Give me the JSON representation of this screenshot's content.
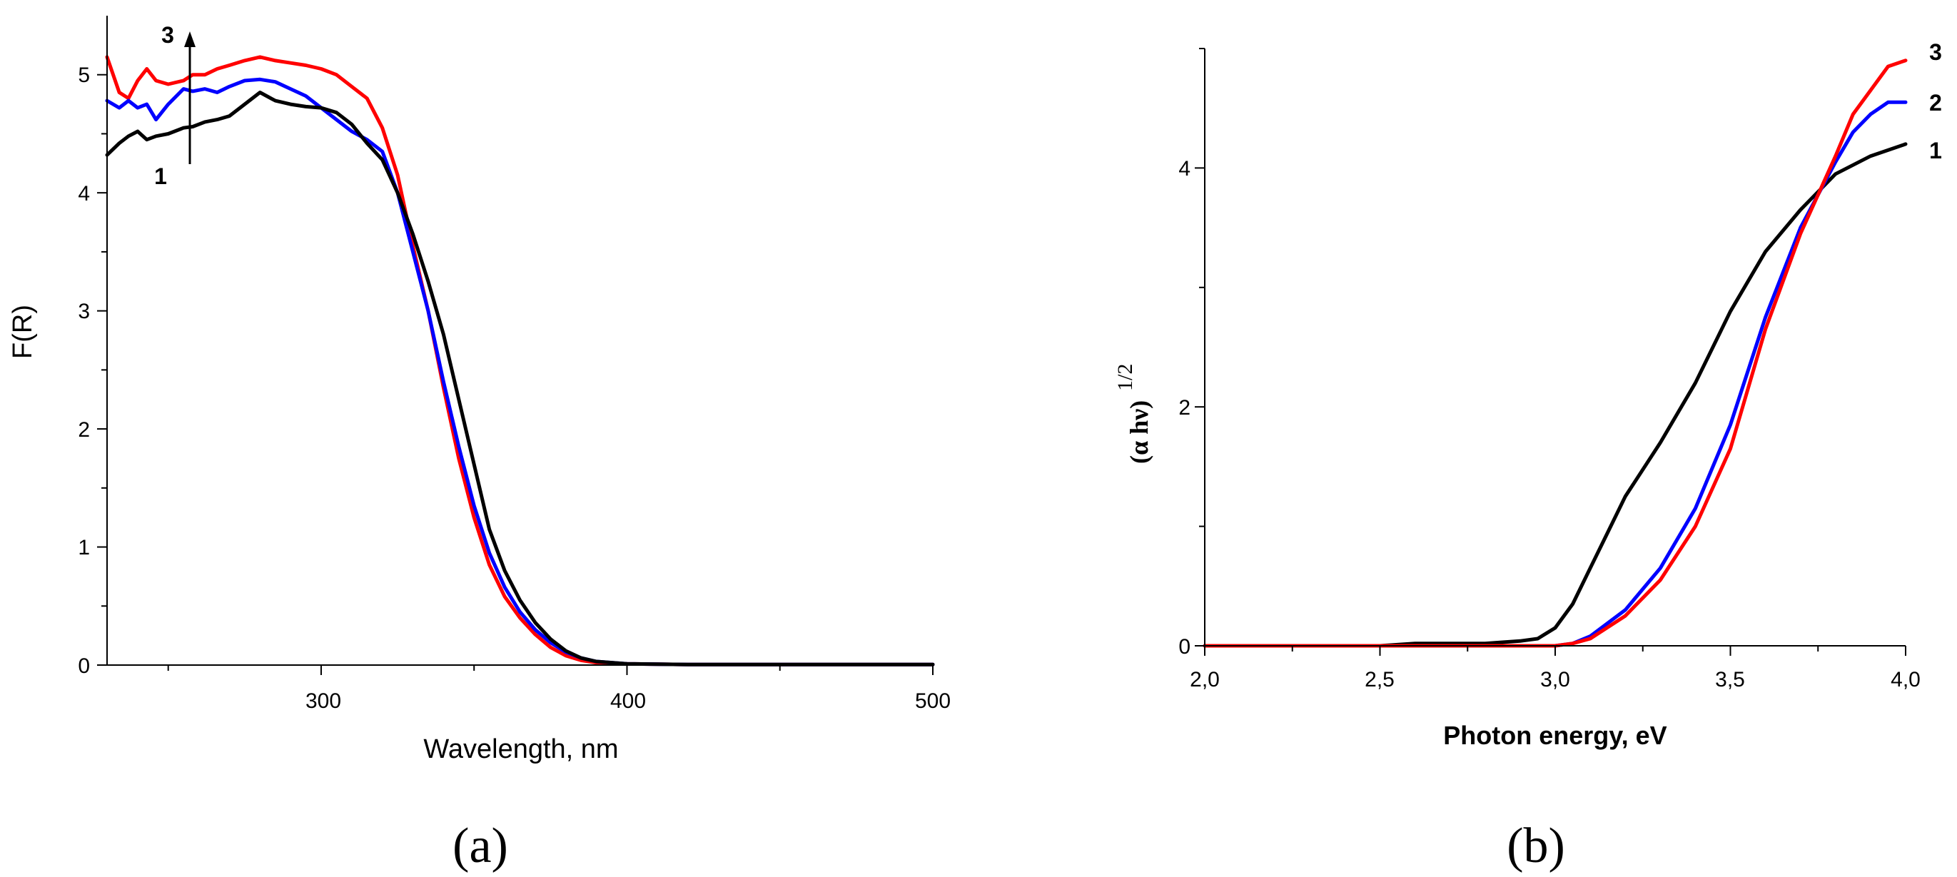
{
  "chart_data": [
    {
      "type": "line",
      "panel_label": "(a)",
      "xlabel": "Wavelength, nm",
      "ylabel": "F(R)",
      "xlim": [
        230,
        500
      ],
      "ylim": [
        0,
        5.5
      ],
      "x_ticks": [
        "300",
        "400",
        "500"
      ],
      "y_ticks": [
        "0",
        "1",
        "2",
        "3",
        "4",
        "5"
      ],
      "grid": false,
      "annotations": [
        "1",
        "3"
      ],
      "series": [
        {
          "color": "#ff0000",
          "points": [
            [
              230,
              5.15
            ],
            [
              234,
              4.85
            ],
            [
              237,
              4.8
            ],
            [
              240,
              4.95
            ],
            [
              243,
              5.05
            ],
            [
              246,
              4.95
            ],
            [
              250,
              4.92
            ],
            [
              255,
              4.95
            ],
            [
              258,
              5.0
            ],
            [
              262,
              5.0
            ],
            [
              266,
              5.05
            ],
            [
              270,
              5.08
            ],
            [
              275,
              5.12
            ],
            [
              280,
              5.15
            ],
            [
              285,
              5.12
            ],
            [
              290,
              5.1
            ],
            [
              295,
              5.08
            ],
            [
              300,
              5.05
            ],
            [
              305,
              5.0
            ],
            [
              310,
              4.9
            ],
            [
              315,
              4.8
            ],
            [
              320,
              4.55
            ],
            [
              325,
              4.15
            ],
            [
              330,
              3.55
            ],
            [
              335,
              3.0
            ],
            [
              340,
              2.35
            ],
            [
              345,
              1.75
            ],
            [
              350,
              1.25
            ],
            [
              355,
              0.85
            ],
            [
              360,
              0.58
            ],
            [
              365,
              0.4
            ],
            [
              370,
              0.26
            ],
            [
              375,
              0.15
            ],
            [
              380,
              0.08
            ],
            [
              385,
              0.04
            ],
            [
              390,
              0.02
            ],
            [
              400,
              0.01
            ],
            [
              420,
              0.005
            ],
            [
              500,
              0.005
            ]
          ]
        },
        {
          "color": "#0000ff",
          "points": [
            [
              230,
              4.78
            ],
            [
              234,
              4.72
            ],
            [
              237,
              4.78
            ],
            [
              240,
              4.72
            ],
            [
              243,
              4.75
            ],
            [
              246,
              4.62
            ],
            [
              250,
              4.75
            ],
            [
              255,
              4.88
            ],
            [
              258,
              4.86
            ],
            [
              262,
              4.88
            ],
            [
              266,
              4.85
            ],
            [
              270,
              4.9
            ],
            [
              275,
              4.95
            ],
            [
              280,
              4.96
            ],
            [
              285,
              4.94
            ],
            [
              290,
              4.88
            ],
            [
              295,
              4.82
            ],
            [
              300,
              4.72
            ],
            [
              305,
              4.62
            ],
            [
              310,
              4.52
            ],
            [
              315,
              4.45
            ],
            [
              320,
              4.35
            ],
            [
              325,
              4.0
            ],
            [
              330,
              3.5
            ],
            [
              335,
              3.0
            ],
            [
              340,
              2.4
            ],
            [
              345,
              1.85
            ],
            [
              350,
              1.35
            ],
            [
              355,
              0.95
            ],
            [
              360,
              0.66
            ],
            [
              365,
              0.45
            ],
            [
              370,
              0.3
            ],
            [
              375,
              0.19
            ],
            [
              380,
              0.11
            ],
            [
              385,
              0.06
            ],
            [
              390,
              0.03
            ],
            [
              400,
              0.01
            ],
            [
              420,
              0.005
            ],
            [
              500,
              0.005
            ]
          ]
        },
        {
          "color": "#000000",
          "points": [
            [
              230,
              4.32
            ],
            [
              234,
              4.42
            ],
            [
              237,
              4.48
            ],
            [
              240,
              4.52
            ],
            [
              243,
              4.45
            ],
            [
              246,
              4.48
            ],
            [
              250,
              4.5
            ],
            [
              255,
              4.55
            ],
            [
              258,
              4.56
            ],
            [
              262,
              4.6
            ],
            [
              266,
              4.62
            ],
            [
              270,
              4.65
            ],
            [
              275,
              4.75
            ],
            [
              280,
              4.85
            ],
            [
              285,
              4.78
            ],
            [
              290,
              4.75
            ],
            [
              295,
              4.73
            ],
            [
              300,
              4.72
            ],
            [
              305,
              4.68
            ],
            [
              310,
              4.58
            ],
            [
              315,
              4.42
            ],
            [
              320,
              4.28
            ],
            [
              325,
              4.0
            ],
            [
              330,
              3.65
            ],
            [
              335,
              3.25
            ],
            [
              340,
              2.8
            ],
            [
              345,
              2.25
            ],
            [
              350,
              1.7
            ],
            [
              355,
              1.15
            ],
            [
              360,
              0.8
            ],
            [
              365,
              0.55
            ],
            [
              370,
              0.36
            ],
            [
              375,
              0.22
            ],
            [
              380,
              0.12
            ],
            [
              385,
              0.06
            ],
            [
              390,
              0.03
            ],
            [
              400,
              0.01
            ],
            [
              420,
              0.005
            ],
            [
              500,
              0.005
            ]
          ]
        }
      ]
    },
    {
      "type": "line",
      "panel_label": "(b)",
      "xlabel": "Photon energy, eV",
      "ylabel": "(α hν)",
      "ylabel_superscript": "1/2",
      "xlim": [
        2.0,
        4.0
      ],
      "ylim": [
        0,
        5
      ],
      "x_ticks": [
        "2,0",
        "2,5",
        "3,0",
        "3,5",
        "4,0"
      ],
      "y_ticks": [
        "0",
        "2",
        "4"
      ],
      "grid": false,
      "annotations": [
        "3",
        "2",
        "1"
      ],
      "series": [
        {
          "color": "#000000",
          "label": "1",
          "points": [
            [
              2.0,
              0.0
            ],
            [
              2.5,
              0.0
            ],
            [
              2.6,
              0.02
            ],
            [
              2.8,
              0.02
            ],
            [
              2.9,
              0.04
            ],
            [
              2.95,
              0.06
            ],
            [
              3.0,
              0.15
            ],
            [
              3.05,
              0.35
            ],
            [
              3.1,
              0.65
            ],
            [
              3.15,
              0.95
            ],
            [
              3.2,
              1.25
            ],
            [
              3.3,
              1.7
            ],
            [
              3.4,
              2.2
            ],
            [
              3.5,
              2.8
            ],
            [
              3.6,
              3.3
            ],
            [
              3.7,
              3.65
            ],
            [
              3.8,
              3.95
            ],
            [
              3.9,
              4.1
            ],
            [
              4.0,
              4.2
            ]
          ]
        },
        {
          "color": "#0000ff",
          "label": "2",
          "points": [
            [
              2.0,
              0.0
            ],
            [
              3.0,
              0.0
            ],
            [
              3.05,
              0.02
            ],
            [
              3.1,
              0.08
            ],
            [
              3.2,
              0.3
            ],
            [
              3.3,
              0.65
            ],
            [
              3.4,
              1.15
            ],
            [
              3.5,
              1.85
            ],
            [
              3.6,
              2.75
            ],
            [
              3.7,
              3.5
            ],
            [
              3.8,
              4.05
            ],
            [
              3.85,
              4.3
            ],
            [
              3.9,
              4.45
            ],
            [
              3.95,
              4.55
            ],
            [
              4.0,
              4.55
            ]
          ]
        },
        {
          "color": "#ff0000",
          "label": "3",
          "points": [
            [
              2.0,
              0.0
            ],
            [
              3.0,
              0.0
            ],
            [
              3.05,
              0.02
            ],
            [
              3.1,
              0.06
            ],
            [
              3.2,
              0.25
            ],
            [
              3.3,
              0.55
            ],
            [
              3.4,
              1.0
            ],
            [
              3.5,
              1.65
            ],
            [
              3.6,
              2.65
            ],
            [
              3.7,
              3.45
            ],
            [
              3.8,
              4.1
            ],
            [
              3.85,
              4.45
            ],
            [
              3.9,
              4.65
            ],
            [
              3.95,
              4.85
            ],
            [
              4.0,
              4.9
            ]
          ]
        }
      ]
    }
  ]
}
